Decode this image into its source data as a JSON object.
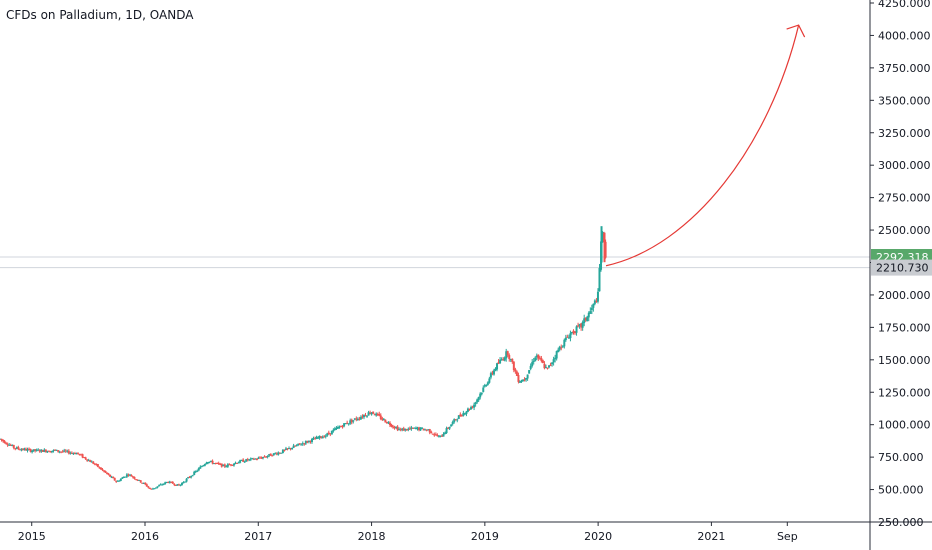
{
  "chart_data": {
    "type": "candlestick",
    "title": "CFDs on Palladium, 1D, OANDA",
    "ylim": [
      250,
      4250
    ],
    "y_ticks": [
      250,
      500,
      750,
      1000,
      1250,
      1500,
      1750,
      2000,
      2250,
      2500,
      2750,
      3000,
      3250,
      3500,
      3750,
      4000,
      4250
    ],
    "y_tick_labels": [
      "250.000",
      "500.000",
      "750.000",
      "1000.000",
      "1250.000",
      "1500.000",
      "1750.000",
      "2000.000",
      "2250.000",
      "2500.000",
      "2750.000",
      "3000.000",
      "3250.000",
      "3500.000",
      "3750.000",
      "4000.000",
      "4250.000"
    ],
    "x_ticks": [
      2015,
      2016,
      2017,
      2018,
      2019,
      2020,
      2021,
      2021.67
    ],
    "x_tick_labels": [
      "2015",
      "2016",
      "2017",
      "2018",
      "2019",
      "2020",
      "2021",
      "Sep"
    ],
    "xlim": [
      2014.72,
      2022.4
    ],
    "price_series": {
      "name": "CFDs on Palladium",
      "x": [
        2014.72,
        2014.85,
        2015.0,
        2015.2,
        2015.4,
        2015.55,
        2015.75,
        2015.85,
        2016.0,
        2016.05,
        2016.2,
        2016.3,
        2016.45,
        2016.55,
        2016.7,
        2016.85,
        2017.0,
        2017.2,
        2017.4,
        2017.6,
        2017.75,
        2017.9,
        2018.0,
        2018.1,
        2018.25,
        2018.4,
        2018.5,
        2018.6,
        2018.75,
        2018.9,
        2019.0,
        2019.1,
        2019.2,
        2019.3,
        2019.35,
        2019.45,
        2019.55,
        2019.65,
        2019.75,
        2019.85,
        2019.95,
        2020.0,
        2020.03,
        2020.05,
        2020.07
      ],
      "close": [
        890,
        820,
        800,
        800,
        780,
        700,
        560,
        620,
        540,
        500,
        560,
        530,
        640,
        720,
        680,
        720,
        740,
        790,
        860,
        920,
        1000,
        1060,
        1100,
        1040,
        960,
        970,
        960,
        900,
        1050,
        1150,
        1300,
        1450,
        1560,
        1340,
        1350,
        1540,
        1420,
        1580,
        1700,
        1760,
        1900,
        2000,
        2500,
        2400,
        2292
      ]
    },
    "current_price": 2292.318,
    "reference_price": 2210.73,
    "current_price_label": "2292.318",
    "reference_price_label": "2210.730",
    "projection": {
      "from": [
        2020.07,
        2225
      ],
      "to": [
        2021.77,
        4080
      ]
    },
    "colors": {
      "up": "#26a69a",
      "down": "#ef5350",
      "projection": "#e53935",
      "current_tag": "#58a86a",
      "reference_tag": "#c9ccd1"
    }
  }
}
